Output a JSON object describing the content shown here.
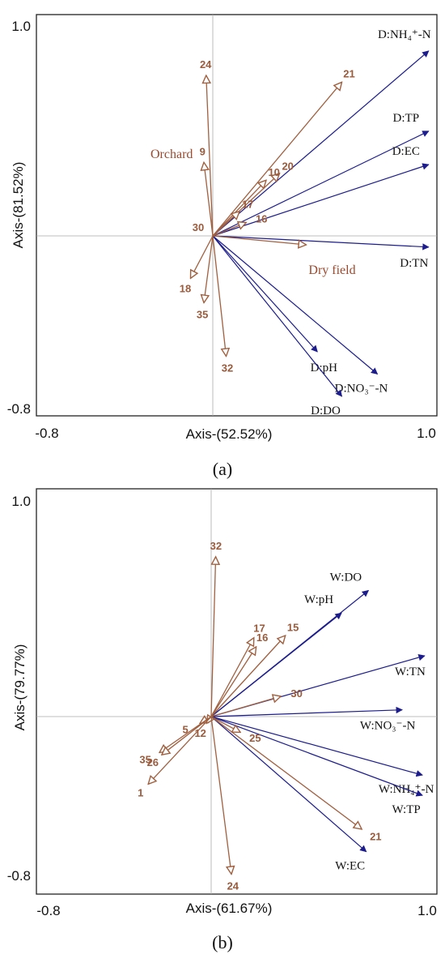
{
  "colors": {
    "env_arrow": "#1c1c8c",
    "site_arrow": "#a0603f",
    "site_label": "#9a5b3c",
    "group_label": "#9a4a2e",
    "frame": "#222222",
    "crosshair": "#aaaaaa"
  },
  "chart_data": [
    {
      "type": "scatter",
      "panel": "(a)",
      "xlabel": "Axis-(52.52%)",
      "ylabel": "Axis-(81.52%)",
      "xlim": [
        -0.8,
        1.0
      ],
      "ylim": [
        -0.8,
        1.0
      ],
      "x_ticks": [
        "-0.8",
        "1.0"
      ],
      "y_ticks": [
        "1.0",
        "-0.8"
      ],
      "environmental_vectors": [
        {
          "label": "D:NH₄⁺-N",
          "x": 0.97,
          "y": 0.83
        },
        {
          "label": "D:TP",
          "x": 0.97,
          "y": 0.47
        },
        {
          "label": "D:EC",
          "x": 0.97,
          "y": 0.32
        },
        {
          "label": "D:TN",
          "x": 0.97,
          "y": -0.05
        },
        {
          "label": "D:pH",
          "x": 0.47,
          "y": -0.52
        },
        {
          "label": "D:NO₃⁻-N",
          "x": 0.74,
          "y": -0.62
        },
        {
          "label": "D:DO",
          "x": 0.58,
          "y": -0.72
        }
      ],
      "site_vectors": [
        {
          "label": "24",
          "x": -0.03,
          "y": 0.72
        },
        {
          "label": "21",
          "x": 0.58,
          "y": 0.69
        },
        {
          "label": "9",
          "x": -0.04,
          "y": 0.33
        },
        {
          "label": "20",
          "x": 0.3,
          "y": 0.28
        },
        {
          "label": "10",
          "x": 0.24,
          "y": 0.25
        },
        {
          "label": "17",
          "x": 0.12,
          "y": 0.11
        },
        {
          "label": "16",
          "x": 0.15,
          "y": 0.06
        },
        {
          "label": "30",
          "x": 0.0,
          "y": 0.0
        },
        {
          "label": "Dry field",
          "x": 0.42,
          "y": -0.04
        },
        {
          "label": "18",
          "x": -0.1,
          "y": -0.19
        },
        {
          "label": "35",
          "x": -0.04,
          "y": -0.3
        },
        {
          "label": "32",
          "x": 0.06,
          "y": -0.54
        }
      ],
      "group_labels": [
        "Orchard",
        "Dry field"
      ]
    },
    {
      "type": "scatter",
      "panel": "(b)",
      "xlabel": "Axis-(61.67%)",
      "ylabel": "Axis-(79.77%)",
      "xlim": [
        -0.8,
        1.0
      ],
      "ylim": [
        -0.8,
        1.0
      ],
      "x_ticks": [
        "-0.8",
        "1.0"
      ],
      "y_ticks": [
        "1.0",
        "-0.8"
      ],
      "environmental_vectors": [
        {
          "label": "W:DO",
          "x": 0.7,
          "y": 0.56
        },
        {
          "label": "W:pH",
          "x": 0.58,
          "y": 0.46
        },
        {
          "label": "W:TN",
          "x": 0.95,
          "y": 0.27
        },
        {
          "label": "W:NO₃⁻-N",
          "x": 0.85,
          "y": 0.03
        },
        {
          "label": "W:NH₄⁺-N",
          "x": 0.94,
          "y": -0.26
        },
        {
          "label": "W:TP",
          "x": 0.94,
          "y": -0.35
        },
        {
          "label": "W:EC",
          "x": 0.69,
          "y": -0.6
        }
      ],
      "site_vectors": [
        {
          "label": "32",
          "x": 0.02,
          "y": 0.71
        },
        {
          "label": "17",
          "x": 0.19,
          "y": 0.35
        },
        {
          "label": "16",
          "x": 0.2,
          "y": 0.31
        },
        {
          "label": "15",
          "x": 0.33,
          "y": 0.36
        },
        {
          "label": "30",
          "x": 0.31,
          "y": 0.09
        },
        {
          "label": "5",
          "x": -0.05,
          "y": -0.03
        },
        {
          "label": "12",
          "x": -0.02,
          "y": -0.03
        },
        {
          "label": "25",
          "x": 0.13,
          "y": -0.07
        },
        {
          "label": "35",
          "x": -0.23,
          "y": -0.16
        },
        {
          "label": "26",
          "x": -0.22,
          "y": -0.17
        },
        {
          "label": "1",
          "x": -0.28,
          "y": -0.3
        },
        {
          "label": "21",
          "x": 0.67,
          "y": -0.5
        },
        {
          "label": "24",
          "x": 0.09,
          "y": -0.7
        }
      ],
      "group_labels": []
    }
  ]
}
